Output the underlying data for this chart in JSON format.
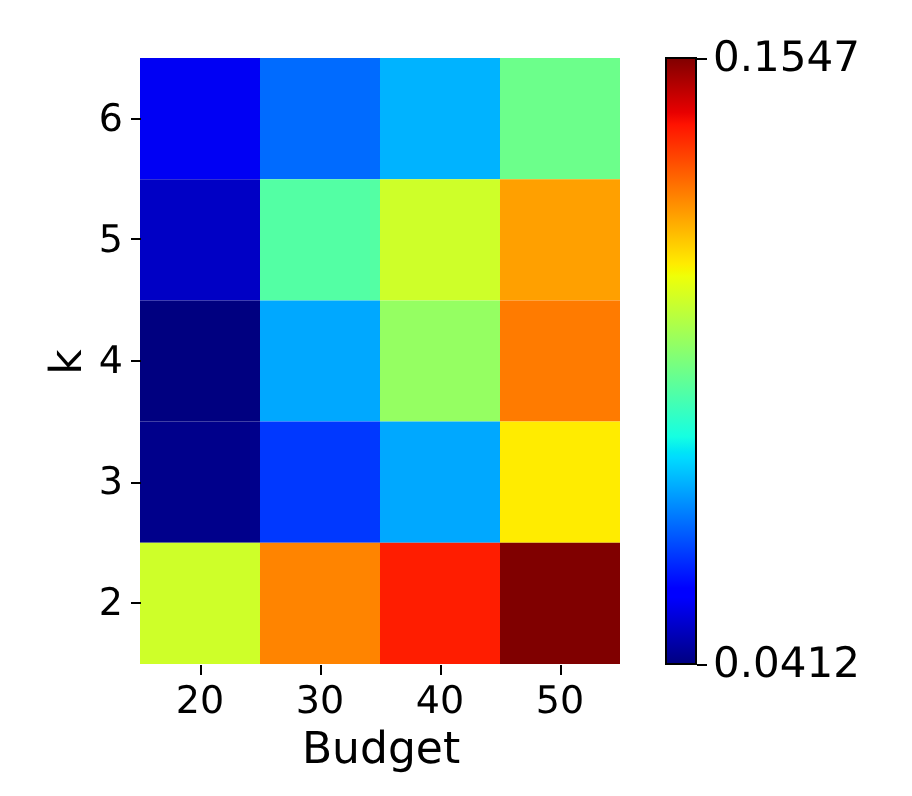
{
  "chart_data": {
    "type": "heatmap",
    "xlabel": "Budget",
    "ylabel": "k",
    "categories": [
      "20",
      "30",
      "40",
      "50"
    ],
    "y_categories": [
      "6",
      "5",
      "4",
      "3",
      "2"
    ],
    "cells": [
      [
        0.0526,
        0.0673,
        0.0753,
        0.0957
      ],
      [
        0.048,
        0.0923,
        0.1093,
        0.1252
      ],
      [
        0.0412,
        0.0741,
        0.1014,
        0.1297
      ],
      [
        0.0423,
        0.0616,
        0.0741,
        0.1161
      ],
      [
        0.1093,
        0.1286,
        0.141,
        0.1547
      ]
    ],
    "clim": [
      0.0412,
      0.1547
    ],
    "cticks": [
      0.0412,
      0.1547
    ]
  }
}
